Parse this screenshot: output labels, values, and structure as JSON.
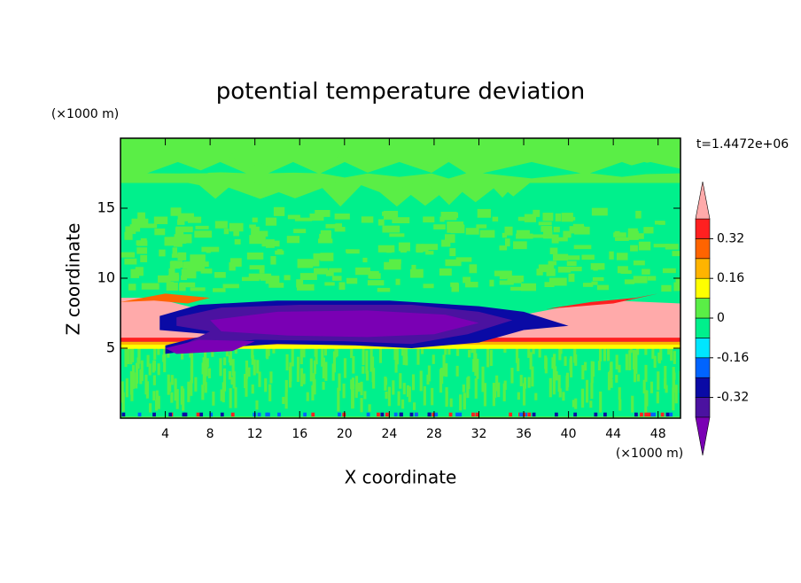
{
  "chart_data": {
    "type": "contour",
    "title": "potential temperature deviation",
    "x_label": "X coordinate",
    "y_label": "Z coordinate",
    "x_unit": "(×1000 m)",
    "y_unit": "(×1000 m)",
    "time_label": "t=1.4472e+06",
    "xlim": [
      0,
      50
    ],
    "xticks": [
      4,
      8,
      12,
      16,
      20,
      24,
      28,
      32,
      36,
      40,
      44,
      48
    ],
    "ylim": [
      0,
      20
    ],
    "yticks": [
      5,
      10,
      15
    ],
    "colorbar": {
      "levels": [
        -0.4,
        -0.32,
        -0.24,
        -0.16,
        -0.08,
        0,
        0.08,
        0.16,
        0.24,
        0.32,
        0.4
      ],
      "ticks": [
        0.32,
        0.16,
        0,
        -0.16,
        -0.32
      ],
      "colors": [
        "#7a00b4",
        "#4b12a0",
        "#0a0aa5",
        "#0064ff",
        "#00e6ff",
        "#00f08c",
        "#5aee46",
        "#ffff00",
        "#ffb400",
        "#ff6400",
        "#ff2020",
        "#ffaaaa"
      ]
    }
  }
}
